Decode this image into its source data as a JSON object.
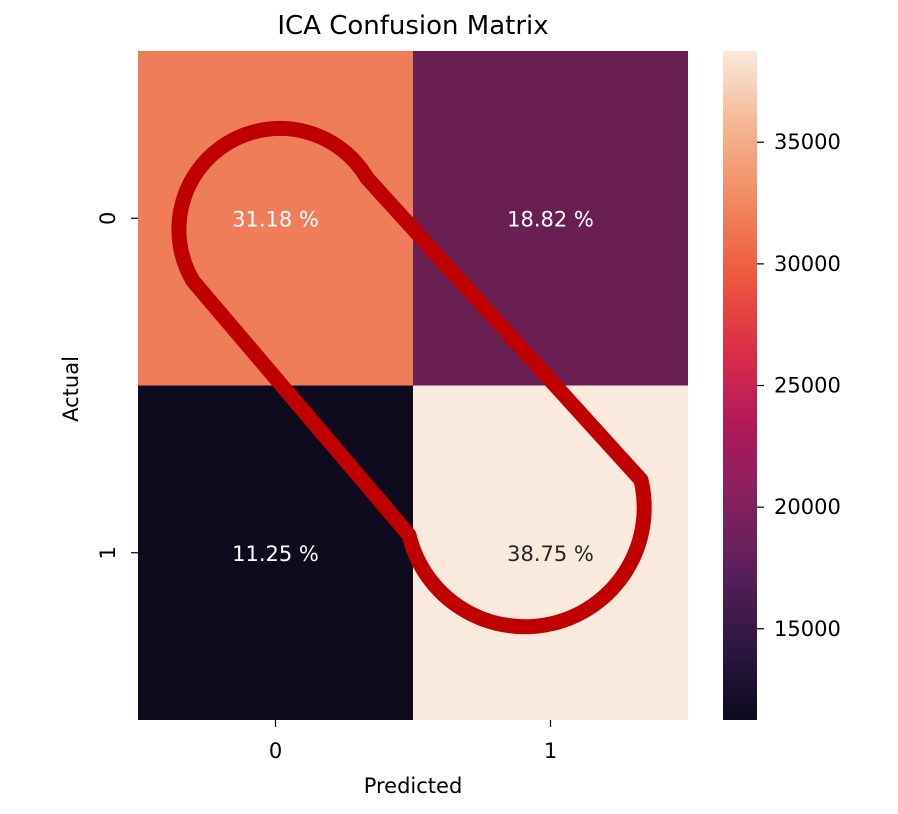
{
  "chart_data": {
    "type": "heatmap",
    "title": "ICA Confusion Matrix",
    "xlabel": "Predicted",
    "ylabel": "Actual",
    "x_categories": [
      "0",
      "1"
    ],
    "y_categories": [
      "0",
      "1"
    ],
    "cells": [
      {
        "row": 0,
        "col": 0,
        "label": "31.18 %",
        "color": "#f07d59"
      },
      {
        "row": 0,
        "col": 1,
        "label": "18.82 %",
        "color": "#6a1f53"
      },
      {
        "row": 1,
        "col": 0,
        "label": "11.25 %",
        "color": "#0e0b1e"
      },
      {
        "row": 1,
        "col": 1,
        "label": "38.75 %",
        "color": "#faeadd"
      }
    ],
    "label_colors": {
      "light": "#ffffff",
      "dark": "#262626"
    },
    "colorbar": {
      "range": [
        11250,
        38750
      ],
      "ticks": [
        "15000",
        "20000",
        "25000",
        "30000",
        "35000"
      ],
      "tick_values": [
        15000,
        20000,
        25000,
        30000,
        35000
      ],
      "gradient": [
        "#0b0a1e",
        "#2e1642",
        "#5a1f5a",
        "#86215f",
        "#b3195a",
        "#dc2e47",
        "#ee5a3e",
        "#f28a60",
        "#f5b592",
        "#faeadd"
      ]
    },
    "annotation": {
      "shape": "rounded-capsule",
      "color": "#c00000",
      "target": "diagonal cells (0,0) and (1,1)"
    }
  }
}
